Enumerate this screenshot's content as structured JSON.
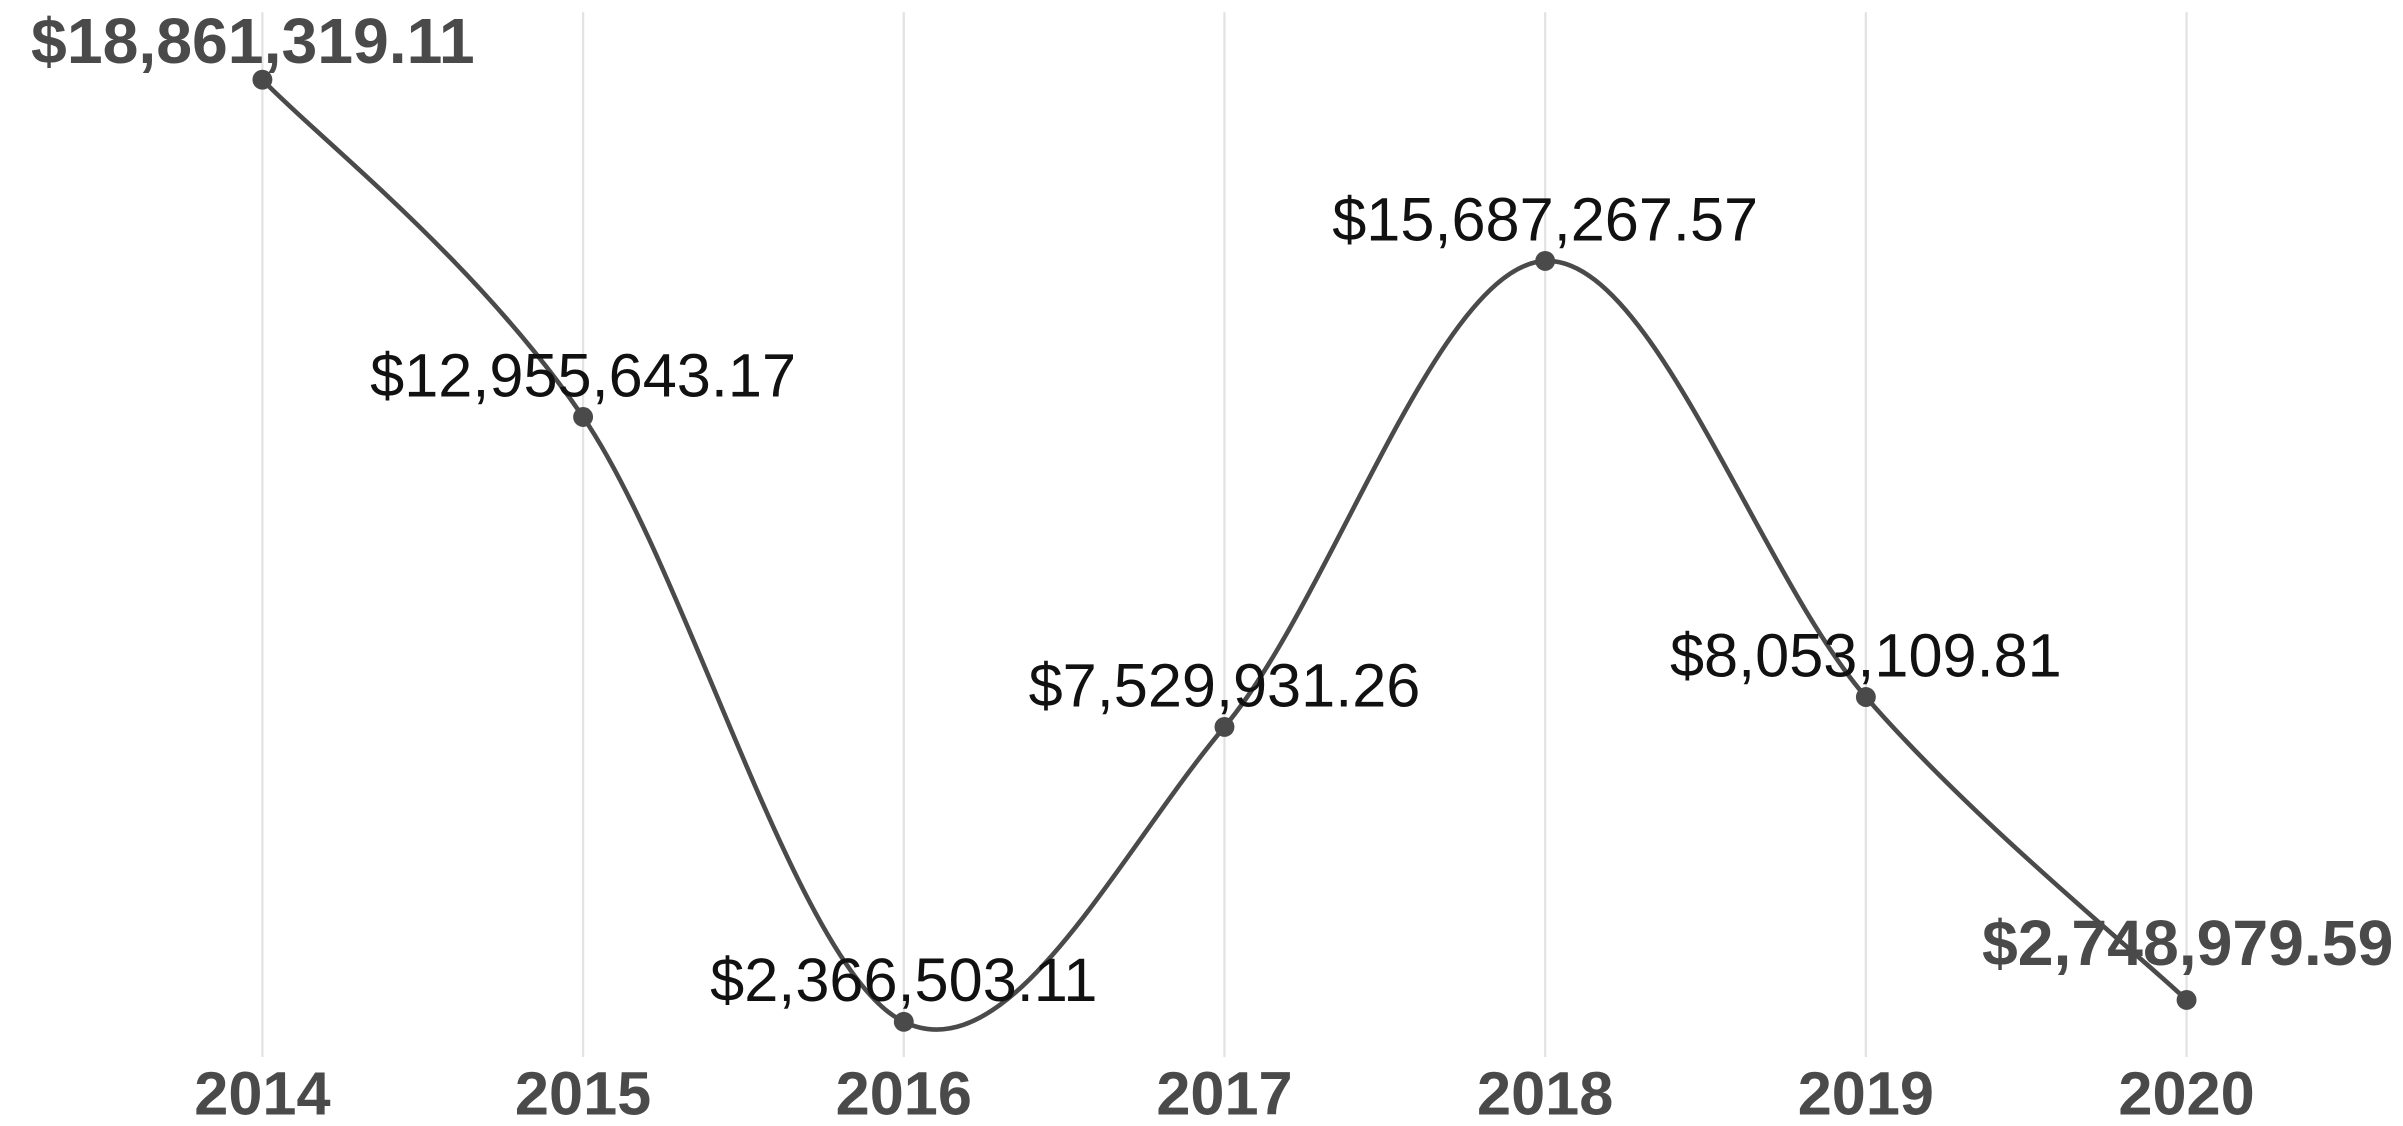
{
  "chart_data": {
    "type": "line",
    "categories": [
      "2014",
      "2015",
      "2016",
      "2017",
      "2018",
      "2019",
      "2020"
    ],
    "series": [
      {
        "color": "#4a4a4a",
        "values": [
          18861319.11,
          12955643.17,
          2366503.11,
          7529931.26,
          15687267.57,
          8053109.81,
          2748979.59
        ],
        "value_labels": [
          "$18,861,319.11",
          "$12,955,643.17",
          "$2,366,503.11",
          "$7,529,931.26",
          "$15,687,267.57",
          "$8,053,109.81",
          "$2,748,979.59"
        ]
      }
    ],
    "grid": true
  }
}
